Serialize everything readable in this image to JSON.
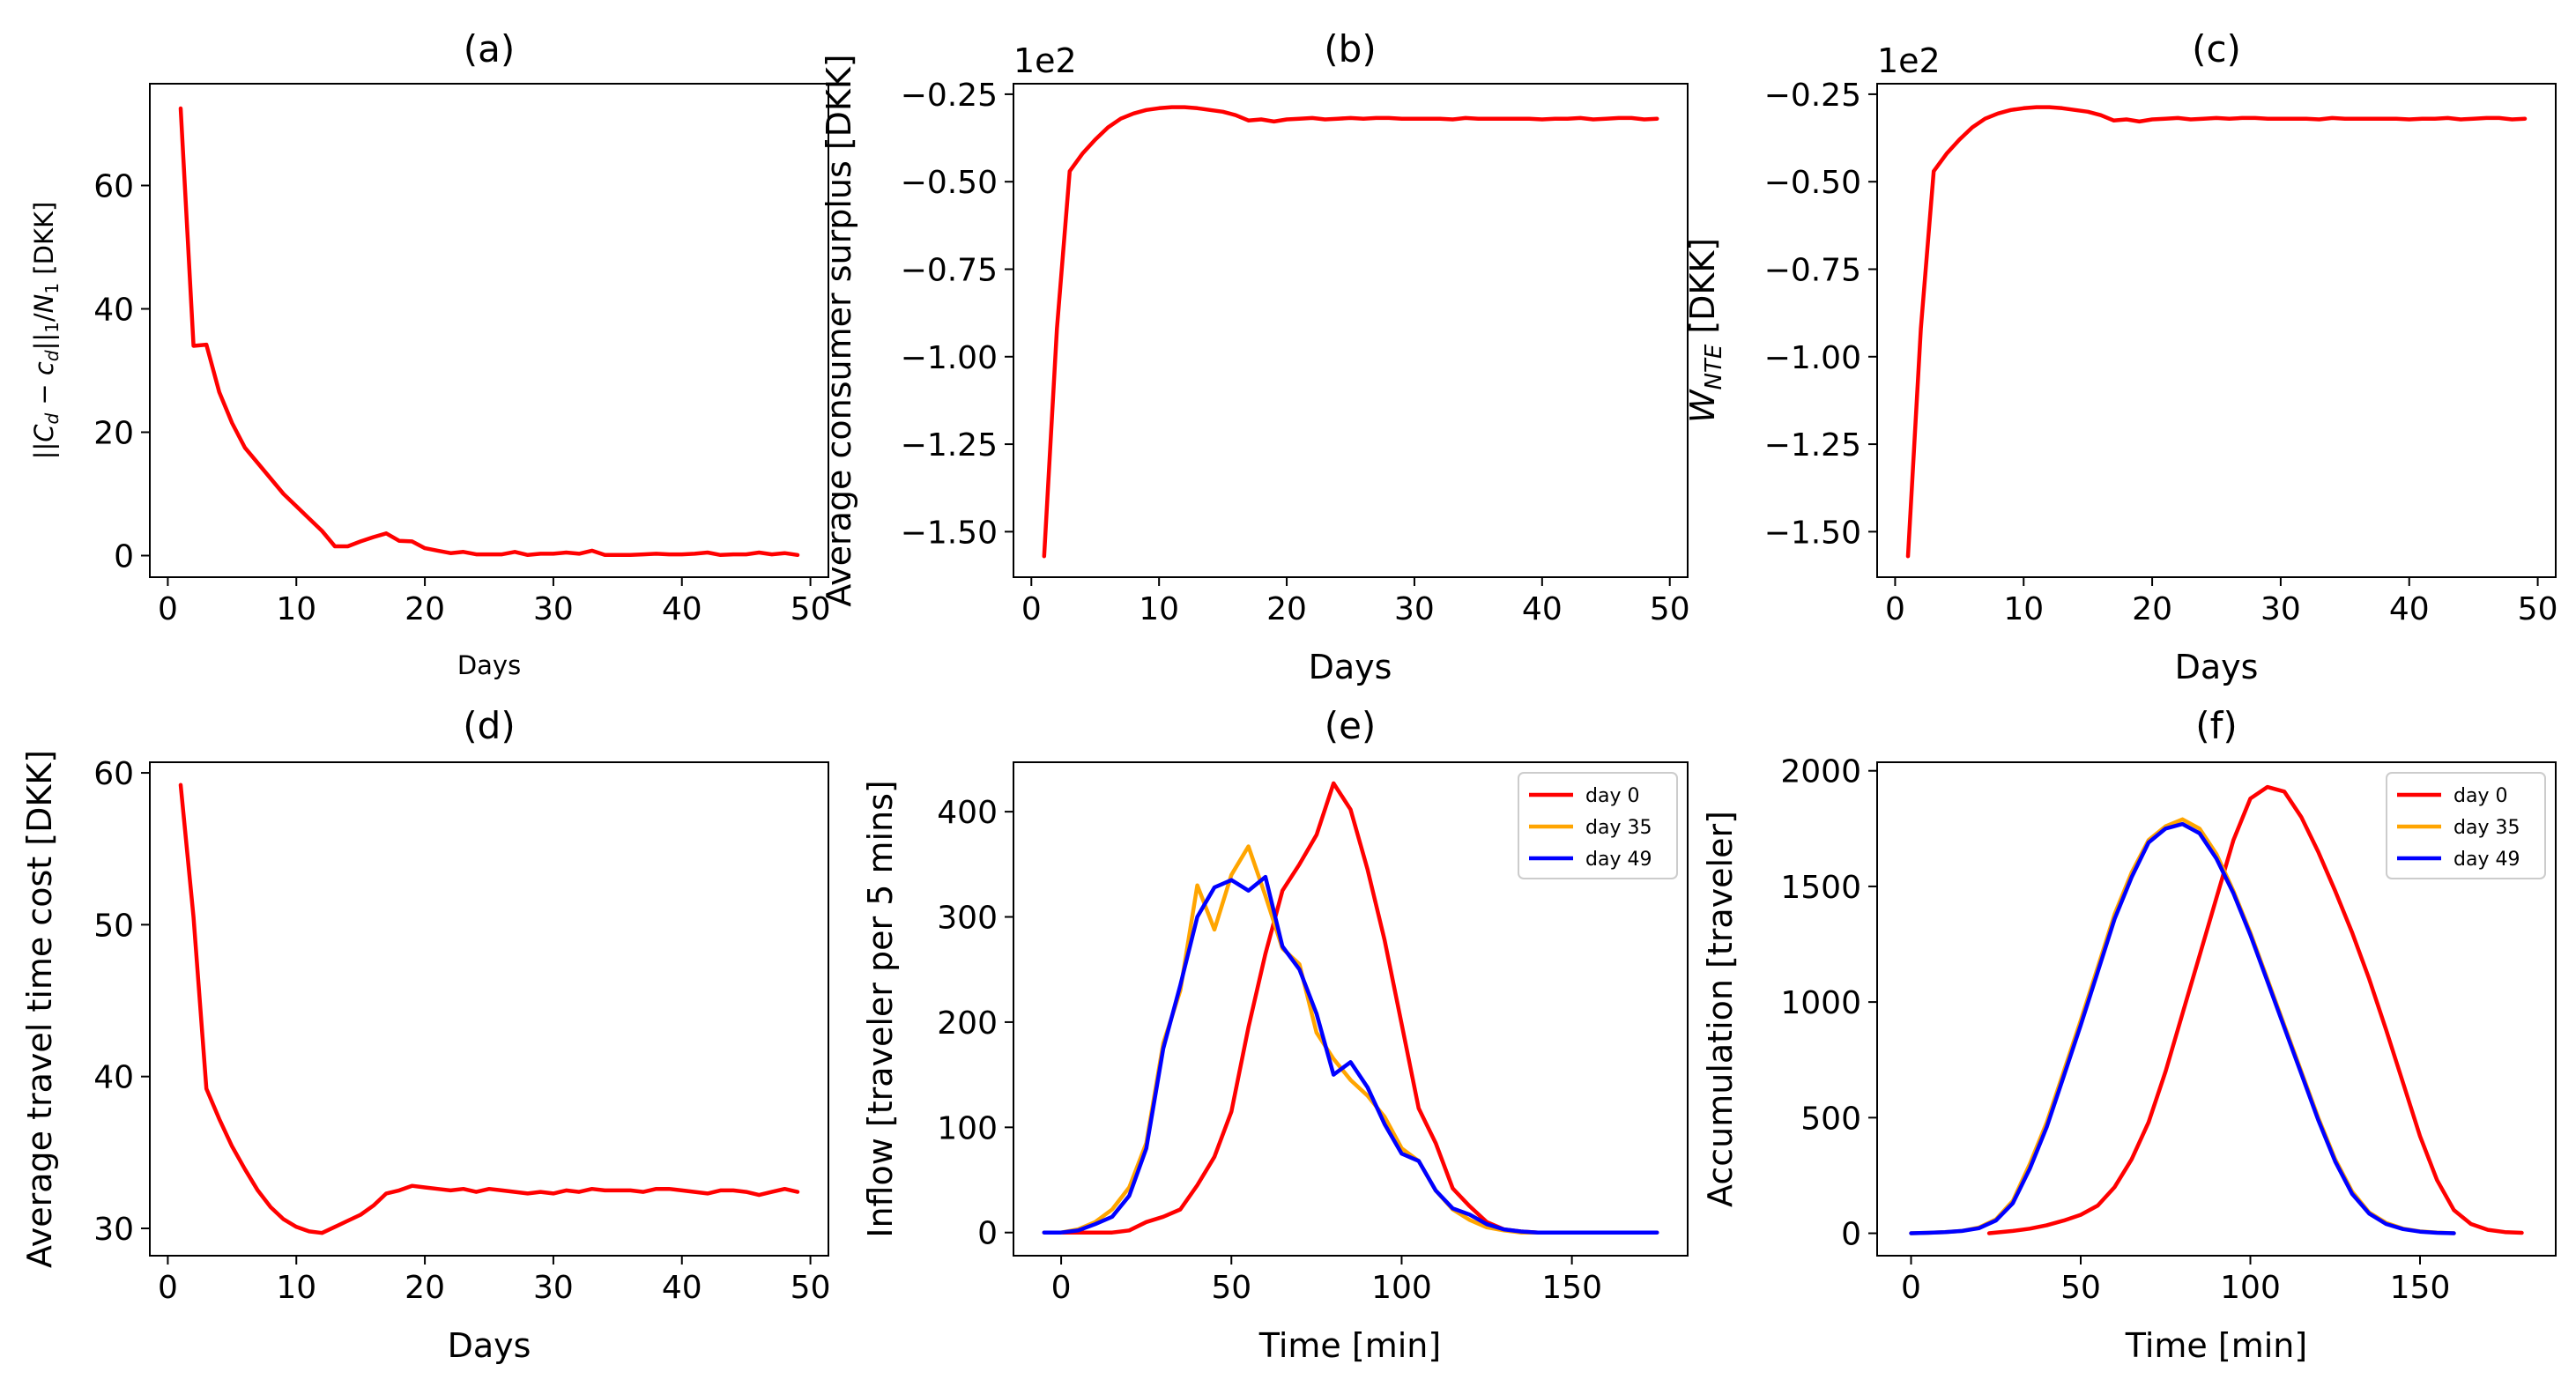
{
  "figure": {
    "background": "#ffffff"
  },
  "chart_data": [
    {
      "id": "a",
      "type": "line",
      "title": "(a)",
      "xlabel": "Days",
      "ylabel": "||C_d − c_d||_1/N_1 [DKK]",
      "xlim": [
        -1.4,
        51.4
      ],
      "ylim": [
        -3.5,
        76.5
      ],
      "xticks": [
        0,
        10,
        20,
        30,
        40,
        50
      ],
      "yticks": [
        0,
        20,
        40,
        60
      ],
      "series": [
        {
          "color": "#ff0000",
          "x": [
            1,
            2,
            3,
            4,
            5,
            6,
            7,
            8,
            9,
            10,
            11,
            12,
            13,
            14,
            15,
            16,
            17,
            18,
            19,
            20,
            21,
            22,
            23,
            24,
            25,
            26,
            27,
            28,
            29,
            30,
            31,
            32,
            33,
            34,
            35,
            36,
            37,
            38,
            39,
            40,
            41,
            42,
            43,
            44,
            45,
            46,
            47,
            48,
            49
          ],
          "y": [
            72.5,
            34,
            34.2,
            26.5,
            21.5,
            17.5,
            15,
            12.5,
            10,
            8,
            6,
            4,
            1.5,
            1.5,
            2.3,
            3,
            3.6,
            2.4,
            2.3,
            1.2,
            0.8,
            0.4,
            0.6,
            0.2,
            0.2,
            0.2,
            0.6,
            0.1,
            0.3,
            0.3,
            0.5,
            0.3,
            0.8,
            0.1,
            0.1,
            0.1,
            0.2,
            0.3,
            0.2,
            0.2,
            0.3,
            0.5,
            0.1,
            0.2,
            0.2,
            0.5,
            0.2,
            0.4,
            0.1
          ]
        }
      ]
    },
    {
      "id": "b",
      "type": "line",
      "title": "(b)",
      "xlabel": "Days",
      "ylabel": "Average consumer surplus [DKK]",
      "offset_text": "1e2",
      "xlim": [
        -1.4,
        51.4
      ],
      "ylim": [
        -1.63,
        -0.22
      ],
      "xticks": [
        0,
        10,
        20,
        30,
        40,
        50
      ],
      "yticks": [
        -1.5,
        -1.25,
        -1.0,
        -0.75,
        -0.5,
        -0.25
      ],
      "ytick_labels": [
        "−1.50",
        "−1.25",
        "−1.00",
        "−0.75",
        "−0.50",
        "−0.25"
      ],
      "series": [
        {
          "color": "#ff0000",
          "x": [
            1,
            2,
            3,
            4,
            5,
            6,
            7,
            8,
            9,
            10,
            11,
            12,
            13,
            14,
            15,
            16,
            17,
            18,
            19,
            20,
            21,
            22,
            23,
            24,
            25,
            26,
            27,
            28,
            29,
            30,
            31,
            32,
            33,
            34,
            35,
            36,
            37,
            38,
            39,
            40,
            41,
            42,
            43,
            44,
            45,
            46,
            47,
            48,
            49
          ],
          "y": [
            -1.57,
            -0.92,
            -0.47,
            -0.42,
            -0.38,
            -0.345,
            -0.32,
            -0.305,
            -0.295,
            -0.29,
            -0.287,
            -0.287,
            -0.29,
            -0.295,
            -0.3,
            -0.31,
            -0.325,
            -0.322,
            -0.328,
            -0.322,
            -0.32,
            -0.318,
            -0.322,
            -0.32,
            -0.318,
            -0.32,
            -0.318,
            -0.318,
            -0.32,
            -0.32,
            -0.32,
            -0.32,
            -0.322,
            -0.318,
            -0.32,
            -0.32,
            -0.32,
            -0.32,
            -0.32,
            -0.322,
            -0.32,
            -0.32,
            -0.318,
            -0.322,
            -0.32,
            -0.318,
            -0.318,
            -0.322,
            -0.32
          ]
        }
      ]
    },
    {
      "id": "c",
      "type": "line",
      "title": "(c)",
      "xlabel": "Days",
      "ylabel": "W_NTE [DKK]",
      "offset_text": "1e2",
      "xlim": [
        -1.4,
        51.4
      ],
      "ylim": [
        -1.63,
        -0.22
      ],
      "xticks": [
        0,
        10,
        20,
        30,
        40,
        50
      ],
      "yticks": [
        -1.5,
        -1.25,
        -1.0,
        -0.75,
        -0.5,
        -0.25
      ],
      "ytick_labels": [
        "−1.50",
        "−1.25",
        "−1.00",
        "−0.75",
        "−0.50",
        "−0.25"
      ],
      "series": [
        {
          "color": "#ff0000",
          "x": [
            1,
            2,
            3,
            4,
            5,
            6,
            7,
            8,
            9,
            10,
            11,
            12,
            13,
            14,
            15,
            16,
            17,
            18,
            19,
            20,
            21,
            22,
            23,
            24,
            25,
            26,
            27,
            28,
            29,
            30,
            31,
            32,
            33,
            34,
            35,
            36,
            37,
            38,
            39,
            40,
            41,
            42,
            43,
            44,
            45,
            46,
            47,
            48,
            49
          ],
          "y": [
            -1.57,
            -0.92,
            -0.47,
            -0.42,
            -0.38,
            -0.345,
            -0.32,
            -0.305,
            -0.295,
            -0.29,
            -0.287,
            -0.287,
            -0.29,
            -0.295,
            -0.3,
            -0.31,
            -0.325,
            -0.322,
            -0.328,
            -0.322,
            -0.32,
            -0.318,
            -0.322,
            -0.32,
            -0.318,
            -0.32,
            -0.318,
            -0.318,
            -0.32,
            -0.32,
            -0.32,
            -0.32,
            -0.322,
            -0.318,
            -0.32,
            -0.32,
            -0.32,
            -0.32,
            -0.32,
            -0.322,
            -0.32,
            -0.32,
            -0.318,
            -0.322,
            -0.32,
            -0.318,
            -0.318,
            -0.322,
            -0.32
          ]
        }
      ]
    },
    {
      "id": "d",
      "type": "line",
      "title": "(d)",
      "xlabel": "Days",
      "ylabel": "Average travel time cost [DKK]",
      "xlim": [
        -1.4,
        51.4
      ],
      "ylim": [
        28.2,
        60.7
      ],
      "xticks": [
        0,
        10,
        20,
        30,
        40,
        50
      ],
      "yticks": [
        30,
        40,
        50,
        60
      ],
      "series": [
        {
          "color": "#ff0000",
          "x": [
            1,
            2,
            3,
            4,
            5,
            6,
            7,
            8,
            9,
            10,
            11,
            12,
            13,
            14,
            15,
            16,
            17,
            18,
            19,
            20,
            21,
            22,
            23,
            24,
            25,
            26,
            27,
            28,
            29,
            30,
            31,
            32,
            33,
            34,
            35,
            36,
            37,
            38,
            39,
            40,
            41,
            42,
            43,
            44,
            45,
            46,
            47,
            48,
            49
          ],
          "y": [
            59.2,
            50.5,
            39.2,
            37.2,
            35.4,
            33.9,
            32.5,
            31.4,
            30.6,
            30.1,
            29.8,
            29.7,
            30.1,
            30.5,
            30.9,
            31.5,
            32.3,
            32.5,
            32.8,
            32.7,
            32.6,
            32.5,
            32.6,
            32.4,
            32.6,
            32.5,
            32.4,
            32.3,
            32.4,
            32.3,
            32.5,
            32.4,
            32.6,
            32.5,
            32.5,
            32.5,
            32.4,
            32.6,
            32.6,
            32.5,
            32.4,
            32.3,
            32.5,
            32.5,
            32.4,
            32.2,
            32.4,
            32.6,
            32.4
          ]
        }
      ]
    },
    {
      "id": "e",
      "type": "line",
      "title": "(e)",
      "xlabel": "Time [min]",
      "ylabel": "Inflow [traveler per 5 mins]",
      "xlim": [
        -14,
        184
      ],
      "ylim": [
        -22,
        447
      ],
      "xticks": [
        0,
        50,
        100,
        150
      ],
      "yticks": [
        0,
        100,
        200,
        300,
        400
      ],
      "legend": {
        "position": "upper right"
      },
      "series": [
        {
          "name": "day 0",
          "color": "#ff0000",
          "x": [
            -5,
            0,
            5,
            10,
            15,
            20,
            25,
            30,
            35,
            40,
            45,
            50,
            55,
            60,
            65,
            70,
            75,
            80,
            85,
            90,
            95,
            100,
            105,
            110,
            115,
            120,
            125,
            130,
            135,
            140,
            145,
            150,
            155,
            160,
            165,
            170,
            175
          ],
          "y": [
            0,
            0,
            0,
            0,
            0,
            2,
            10,
            15,
            22,
            45,
            72,
            115,
            195,
            265,
            325,
            350,
            378,
            427,
            402,
            345,
            278,
            198,
            118,
            85,
            42,
            25,
            10,
            3,
            1,
            0,
            0,
            0,
            0,
            0,
            0,
            0,
            0
          ]
        },
        {
          "name": "day 35",
          "color": "#ffa500",
          "x": [
            -5,
            0,
            5,
            10,
            15,
            20,
            25,
            30,
            35,
            40,
            45,
            50,
            55,
            60,
            65,
            70,
            75,
            80,
            85,
            90,
            95,
            100,
            105,
            110,
            115,
            120,
            125,
            130,
            135,
            140,
            145,
            150,
            155,
            160,
            165,
            170,
            175
          ],
          "y": [
            0,
            0,
            3,
            10,
            22,
            43,
            85,
            180,
            230,
            330,
            288,
            340,
            367,
            320,
            270,
            255,
            190,
            165,
            145,
            130,
            110,
            80,
            68,
            40,
            22,
            12,
            5,
            2,
            0,
            0,
            0,
            0,
            0,
            0,
            0,
            0,
            0
          ]
        },
        {
          "name": "day 49",
          "color": "#0000ff",
          "x": [
            -5,
            0,
            5,
            10,
            15,
            20,
            25,
            30,
            35,
            40,
            45,
            50,
            55,
            60,
            65,
            70,
            75,
            80,
            85,
            90,
            95,
            100,
            105,
            110,
            115,
            120,
            125,
            130,
            135,
            140,
            145,
            150,
            155,
            160,
            165,
            170,
            175
          ],
          "y": [
            0,
            0,
            2,
            8,
            15,
            35,
            80,
            175,
            235,
            300,
            328,
            335,
            325,
            338,
            272,
            250,
            208,
            150,
            162,
            138,
            103,
            75,
            68,
            40,
            23,
            17,
            8,
            3,
            1,
            0,
            0,
            0,
            0,
            0,
            0,
            0,
            0
          ]
        }
      ]
    },
    {
      "id": "f",
      "type": "line",
      "title": "(f)",
      "xlabel": "Time [min]",
      "ylabel": "Accumulation [traveler]",
      "xlim": [
        -10,
        190
      ],
      "ylim": [
        -97,
        2037
      ],
      "xticks": [
        0,
        50,
        100,
        150
      ],
      "yticks": [
        0,
        500,
        1000,
        1500,
        2000
      ],
      "legend": {
        "position": "upper right"
      },
      "series": [
        {
          "name": "day 0",
          "color": "#ff0000",
          "x": [
            23,
            30,
            35,
            40,
            45,
            50,
            55,
            60,
            65,
            70,
            75,
            80,
            85,
            90,
            95,
            100,
            105,
            110,
            115,
            120,
            125,
            130,
            135,
            140,
            145,
            150,
            155,
            160,
            165,
            170,
            175,
            180
          ],
          "y": [
            0,
            10,
            20,
            35,
            55,
            80,
            120,
            200,
            320,
            480,
            700,
            950,
            1200,
            1450,
            1700,
            1880,
            1930,
            1910,
            1800,
            1650,
            1480,
            1300,
            1100,
            880,
            650,
            420,
            230,
            100,
            40,
            15,
            5,
            2
          ]
        },
        {
          "name": "day 35",
          "color": "#ffa500",
          "x": [
            0,
            5,
            10,
            15,
            20,
            25,
            30,
            35,
            40,
            45,
            50,
            55,
            60,
            65,
            70,
            75,
            80,
            85,
            90,
            95,
            100,
            105,
            110,
            115,
            120,
            125,
            130,
            135,
            140,
            145,
            150,
            155,
            160
          ],
          "y": [
            0,
            2,
            5,
            10,
            25,
            60,
            140,
            300,
            480,
            700,
            920,
            1150,
            1380,
            1560,
            1700,
            1760,
            1790,
            1750,
            1640,
            1480,
            1300,
            1100,
            900,
            700,
            500,
            320,
            180,
            90,
            45,
            20,
            8,
            3,
            0
          ]
        },
        {
          "name": "day 49",
          "color": "#0000ff",
          "x": [
            0,
            5,
            10,
            15,
            20,
            25,
            30,
            35,
            40,
            45,
            50,
            55,
            60,
            65,
            70,
            75,
            80,
            85,
            90,
            95,
            100,
            105,
            110,
            115,
            120,
            125,
            130,
            135,
            140,
            145,
            150,
            155,
            160
          ],
          "y": [
            0,
            2,
            5,
            10,
            22,
            55,
            130,
            280,
            460,
            680,
            900,
            1130,
            1360,
            1540,
            1690,
            1750,
            1770,
            1730,
            1620,
            1470,
            1290,
            1090,
            890,
            690,
            490,
            310,
            170,
            85,
            40,
            18,
            7,
            2,
            0
          ]
        }
      ]
    }
  ]
}
